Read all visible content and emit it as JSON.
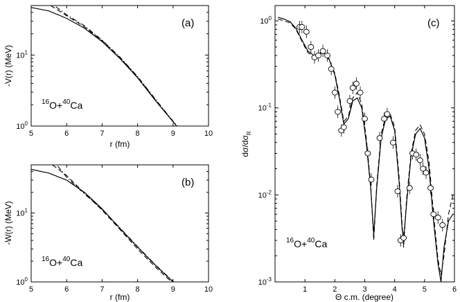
{
  "chart_data": [
    {
      "panel": "(a)",
      "type": "line",
      "xlabel": "r (fm)",
      "ylabel": "-V(r) (MeV)",
      "xlim": [
        5,
        10
      ],
      "ylim": [
        1,
        50
      ],
      "yscale": "log",
      "xticks": [
        5,
        6,
        7,
        8,
        9,
        10
      ],
      "yticks": [
        {
          "value": 1,
          "base": "10",
          "exp": "0"
        },
        {
          "value": 10,
          "base": "10",
          "exp": "1"
        }
      ],
      "reaction": {
        "a1": "16",
        "e1": "O+",
        "a2": "40",
        "e2": "Ca"
      },
      "series": [
        {
          "name": "solid",
          "style": "solid",
          "x": [
            5.0,
            5.5,
            6.0,
            6.5,
            7.0,
            7.5,
            8.0,
            8.5,
            9.0,
            9.1
          ],
          "y": [
            47,
            42,
            33,
            24,
            15.5,
            9.0,
            4.8,
            2.3,
            1.15,
            1.0
          ]
        },
        {
          "name": "dashed",
          "style": "dashed",
          "x": [
            5.55,
            6.0,
            6.5,
            7.0,
            7.5,
            8.0,
            8.5,
            9.0,
            9.1
          ],
          "y": [
            50,
            36,
            25,
            16,
            9.2,
            4.9,
            2.35,
            1.15,
            1.0
          ]
        },
        {
          "name": "dash-dot",
          "style": "dashdot",
          "x": [
            5.7,
            6.0,
            6.5,
            7.0,
            7.5,
            8.0,
            8.5,
            9.0,
            9.12
          ],
          "y": [
            48,
            37,
            26,
            16.3,
            9.4,
            5.0,
            2.4,
            1.17,
            1.0
          ]
        }
      ]
    },
    {
      "panel": "(b)",
      "type": "line",
      "xlabel": "r (fm)",
      "ylabel": "-W(r) (MeV)",
      "xlim": [
        5,
        10
      ],
      "ylim": [
        1,
        50
      ],
      "yscale": "log",
      "xticks": [
        5,
        6,
        7,
        8,
        9,
        10
      ],
      "yticks": [
        {
          "value": 1,
          "base": "10",
          "exp": "0"
        },
        {
          "value": 10,
          "base": "10",
          "exp": "1"
        }
      ],
      "reaction": {
        "a1": "16",
        "e1": "O+",
        "a2": "40",
        "e2": "Ca"
      },
      "series": [
        {
          "name": "solid",
          "style": "solid",
          "x": [
            5.0,
            5.5,
            6.0,
            6.5,
            7.0,
            7.5,
            8.0,
            8.5,
            9.0
          ],
          "y": [
            43,
            38,
            30,
            20,
            11.5,
            6.0,
            3.2,
            1.75,
            1.0
          ]
        },
        {
          "name": "dashed",
          "style": "dashed",
          "x": [
            5.6,
            6.0,
            6.5,
            7.0,
            7.5,
            8.0,
            8.5,
            9.0
          ],
          "y": [
            50,
            35,
            19.5,
            11.0,
            5.8,
            3.0,
            1.65,
            0.95
          ]
        },
        {
          "name": "dash-dot",
          "style": "dashdot",
          "x": [
            5.75,
            6.0,
            6.5,
            7.0,
            7.5,
            8.0,
            8.5,
            9.0
          ],
          "y": [
            48,
            33,
            19,
            11.3,
            6.1,
            3.25,
            1.78,
            1.02
          ]
        }
      ]
    },
    {
      "panel": "(c)",
      "type": "line",
      "xlabel": "Θ c.m. (degree)",
      "ylabel": "dσ/dσ",
      "ylabel_sub": "R",
      "xlim": [
        0,
        6
      ],
      "ylim": [
        0.001,
        1.5
      ],
      "yscale": "log",
      "xticks": [
        1,
        2,
        3,
        4,
        5,
        6
      ],
      "yticks": [
        {
          "value": 0.001,
          "base": "10",
          "exp": "-3"
        },
        {
          "value": 0.01,
          "base": "10",
          "exp": "-2"
        },
        {
          "value": 0.1,
          "base": "10",
          "exp": "-1"
        },
        {
          "value": 1,
          "base": "10",
          "exp": "0"
        }
      ],
      "reaction": {
        "a1": "16",
        "e1": "O+",
        "a2": "40",
        "e2": "Ca"
      },
      "series": [
        {
          "name": "solid",
          "style": "solid",
          "x": [
            0.1,
            0.3,
            0.5,
            0.7,
            0.9,
            1.1,
            1.3,
            1.45,
            1.6,
            1.8,
            2.0,
            2.15,
            2.3,
            2.45,
            2.6,
            2.75,
            2.9,
            3.05,
            3.2,
            3.3,
            3.4,
            3.55,
            3.7,
            3.85,
            4.0,
            4.15,
            4.25,
            4.3,
            4.4,
            4.55,
            4.7,
            4.85,
            5.0,
            5.15,
            5.3,
            5.45,
            5.55,
            5.65,
            5.8,
            5.95
          ],
          "y": [
            1.1,
            1.05,
            0.98,
            0.82,
            0.6,
            0.45,
            0.4,
            0.42,
            0.44,
            0.37,
            0.24,
            0.13,
            0.065,
            0.075,
            0.12,
            0.13,
            0.1,
            0.04,
            0.012,
            0.0035,
            0.012,
            0.045,
            0.075,
            0.08,
            0.055,
            0.014,
            0.004,
            0.003,
            0.008,
            0.028,
            0.05,
            0.058,
            0.045,
            0.02,
            0.005,
            0.0016,
            0.001,
            0.0025,
            0.005,
            0.006
          ]
        },
        {
          "name": "dashed",
          "style": "dashed",
          "x": [
            0.1,
            0.3,
            0.5,
            0.7,
            0.9,
            1.1,
            1.3,
            1.45,
            1.6,
            1.8,
            2.0,
            2.15,
            2.3,
            2.45,
            2.6,
            2.75,
            2.9,
            3.05,
            3.2,
            3.3,
            3.4,
            3.55,
            3.7,
            3.85,
            4.0,
            4.15,
            4.25,
            4.3,
            4.4,
            4.55,
            4.7,
            4.85,
            5.0,
            5.15,
            5.3,
            5.45,
            5.55,
            5.65,
            5.8,
            5.95
          ],
          "y": [
            1.05,
            1.0,
            0.95,
            0.8,
            0.58,
            0.43,
            0.39,
            0.41,
            0.43,
            0.36,
            0.25,
            0.14,
            0.07,
            0.08,
            0.13,
            0.15,
            0.11,
            0.045,
            0.013,
            0.003,
            0.013,
            0.05,
            0.08,
            0.085,
            0.06,
            0.016,
            0.0045,
            0.0025,
            0.009,
            0.03,
            0.055,
            0.064,
            0.05,
            0.024,
            0.006,
            0.0018,
            0.0012,
            0.002,
            0.006,
            0.01
          ]
        },
        {
          "name": "data",
          "style": "circles",
          "x": [
            0.82,
            0.9,
            1.05,
            1.2,
            1.32,
            1.45,
            1.6,
            1.75,
            1.88,
            2.0,
            2.1,
            2.22,
            2.3,
            2.5,
            2.6,
            2.72,
            2.85,
            3.0,
            3.1,
            3.22,
            3.5,
            3.65,
            3.75,
            3.95,
            4.1,
            4.2,
            4.3,
            4.5,
            4.6,
            4.72,
            4.85,
            4.95,
            5.05,
            5.2,
            5.3,
            5.45,
            5.6
          ],
          "y": [
            0.85,
            0.85,
            0.75,
            0.5,
            0.38,
            0.4,
            0.45,
            0.4,
            0.28,
            0.15,
            0.09,
            0.055,
            0.06,
            0.12,
            0.17,
            0.19,
            0.15,
            0.075,
            0.03,
            0.015,
            0.045,
            0.075,
            0.085,
            0.04,
            0.011,
            0.003,
            0.0032,
            0.012,
            0.03,
            0.029,
            0.025,
            0.02,
            0.018,
            0.012,
            0.006,
            0.0055,
            0.0045
          ]
        }
      ]
    }
  ]
}
